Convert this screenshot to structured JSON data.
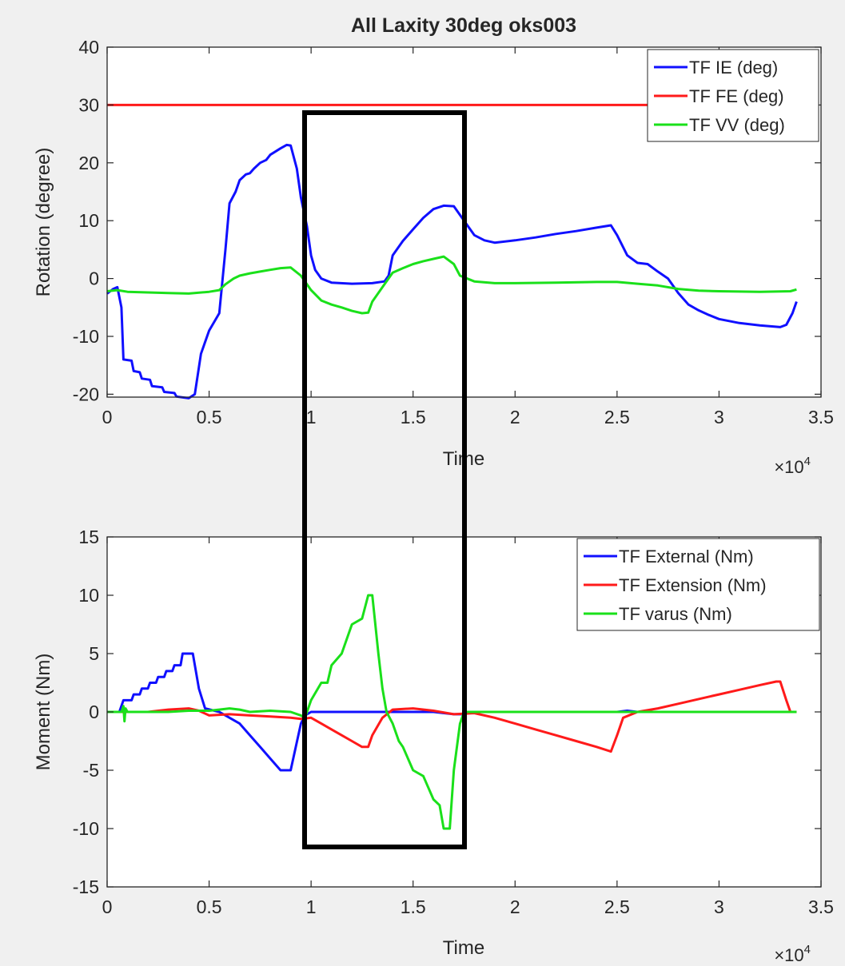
{
  "figure_title": "All Laxity 30deg oks003",
  "highlight_box_color": "#000000",
  "chart_data": [
    {
      "type": "line",
      "title": "All Laxity 30deg oks003",
      "xlabel": "Time",
      "ylabel": "Rotation (degree)",
      "x_exponent_label": "×10",
      "x_exponent_power": "4",
      "xlim": [
        0,
        3.5
      ],
      "ylim": [
        -20.5,
        40
      ],
      "xticks": [
        0,
        0.5,
        1,
        1.5,
        2,
        2.5,
        3,
        3.5
      ],
      "xtick_labels": [
        "0",
        "0.5",
        "1",
        "1.5",
        "2",
        "2.5",
        "3",
        "3.5"
      ],
      "yticks": [
        -20,
        -10,
        0,
        10,
        20,
        30,
        40
      ],
      "ytick_labels": [
        "-20",
        "-10",
        "0",
        "10",
        "20",
        "30",
        "40"
      ],
      "grid": false,
      "legend_position": "top-right",
      "series": [
        {
          "name": "TF IE (deg)",
          "color": "#1010ff",
          "points": [
            [
              0,
              -2.6
            ],
            [
              0.03,
              -1.8
            ],
            [
              0.05,
              -1.5
            ],
            [
              0.07,
              -5
            ],
            [
              0.08,
              -14
            ],
            [
              0.12,
              -14.2
            ],
            [
              0.13,
              -16
            ],
            [
              0.16,
              -16.2
            ],
            [
              0.17,
              -17.3
            ],
            [
              0.21,
              -17.5
            ],
            [
              0.22,
              -18.6
            ],
            [
              0.27,
              -18.8
            ],
            [
              0.28,
              -19.6
            ],
            [
              0.33,
              -19.8
            ],
            [
              0.34,
              -20.4
            ],
            [
              0.4,
              -20.7
            ],
            [
              0.43,
              -20
            ],
            [
              0.46,
              -13
            ],
            [
              0.5,
              -9
            ],
            [
              0.55,
              -6
            ],
            [
              0.58,
              5
            ],
            [
              0.6,
              13
            ],
            [
              0.63,
              15
            ],
            [
              0.65,
              17
            ],
            [
              0.68,
              18
            ],
            [
              0.7,
              18.2
            ],
            [
              0.72,
              19
            ],
            [
              0.75,
              20
            ],
            [
              0.78,
              20.5
            ],
            [
              0.8,
              21.4
            ],
            [
              0.85,
              22.5
            ],
            [
              0.88,
              23.1
            ],
            [
              0.9,
              23
            ],
            [
              0.93,
              19
            ],
            [
              0.95,
              14
            ],
            [
              0.98,
              9
            ],
            [
              1.0,
              4
            ],
            [
              1.02,
              1.5
            ],
            [
              1.05,
              0
            ],
            [
              1.1,
              -0.7
            ],
            [
              1.2,
              -0.9
            ],
            [
              1.3,
              -0.8
            ],
            [
              1.36,
              -0.5
            ],
            [
              1.38,
              0.5
            ],
            [
              1.4,
              4
            ],
            [
              1.45,
              6.5
            ],
            [
              1.5,
              8.5
            ],
            [
              1.55,
              10.5
            ],
            [
              1.6,
              12
            ],
            [
              1.65,
              12.6
            ],
            [
              1.7,
              12.5
            ],
            [
              1.75,
              10
            ],
            [
              1.8,
              7.5
            ],
            [
              1.85,
              6.6
            ],
            [
              1.9,
              6.2
            ],
            [
              2.0,
              6.6
            ],
            [
              2.1,
              7.1
            ],
            [
              2.2,
              7.7
            ],
            [
              2.3,
              8.2
            ],
            [
              2.4,
              8.8
            ],
            [
              2.47,
              9.2
            ],
            [
              2.5,
              7.5
            ],
            [
              2.55,
              4
            ],
            [
              2.6,
              2.7
            ],
            [
              2.65,
              2.5
            ],
            [
              2.7,
              1.2
            ],
            [
              2.75,
              0
            ],
            [
              2.8,
              -2.5
            ],
            [
              2.85,
              -4.5
            ],
            [
              2.9,
              -5.5
            ],
            [
              2.95,
              -6.3
            ],
            [
              3.0,
              -7
            ],
            [
              3.1,
              -7.7
            ],
            [
              3.2,
              -8.1
            ],
            [
              3.3,
              -8.4
            ],
            [
              3.33,
              -8
            ],
            [
              3.36,
              -6
            ],
            [
              3.38,
              -4
            ]
          ]
        },
        {
          "name": "TF FE (deg)",
          "color": "#ff1a1a",
          "points": [
            [
              0,
              30
            ],
            [
              3.38,
              30
            ]
          ]
        },
        {
          "name": "TF VV (deg)",
          "color": "#1ae01a",
          "points": [
            [
              0,
              -2.2
            ],
            [
              0.05,
              -2.0
            ],
            [
              0.1,
              -2.3
            ],
            [
              0.2,
              -2.4
            ],
            [
              0.3,
              -2.5
            ],
            [
              0.4,
              -2.6
            ],
            [
              0.5,
              -2.3
            ],
            [
              0.55,
              -2
            ],
            [
              0.58,
              -1
            ],
            [
              0.62,
              0
            ],
            [
              0.65,
              0.5
            ],
            [
              0.7,
              0.9
            ],
            [
              0.75,
              1.2
            ],
            [
              0.8,
              1.5
            ],
            [
              0.85,
              1.8
            ],
            [
              0.9,
              1.9
            ],
            [
              0.95,
              0.5
            ],
            [
              1.0,
              -2
            ],
            [
              1.05,
              -3.8
            ],
            [
              1.1,
              -4.5
            ],
            [
              1.15,
              -5
            ],
            [
              1.2,
              -5.6
            ],
            [
              1.25,
              -6
            ],
            [
              1.28,
              -5.9
            ],
            [
              1.3,
              -4
            ],
            [
              1.35,
              -1.5
            ],
            [
              1.4,
              1
            ],
            [
              1.45,
              1.8
            ],
            [
              1.5,
              2.5
            ],
            [
              1.55,
              3
            ],
            [
              1.6,
              3.4
            ],
            [
              1.65,
              3.8
            ],
            [
              1.7,
              2.5
            ],
            [
              1.73,
              0.5
            ],
            [
              1.8,
              -0.5
            ],
            [
              1.9,
              -0.8
            ],
            [
              2.0,
              -0.8
            ],
            [
              2.2,
              -0.7
            ],
            [
              2.4,
              -0.6
            ],
            [
              2.5,
              -0.6
            ],
            [
              2.6,
              -0.9
            ],
            [
              2.7,
              -1.2
            ],
            [
              2.8,
              -1.8
            ],
            [
              2.9,
              -2.1
            ],
            [
              3.0,
              -2.2
            ],
            [
              3.2,
              -2.3
            ],
            [
              3.35,
              -2.2
            ],
            [
              3.38,
              -1.9
            ]
          ]
        }
      ]
    },
    {
      "type": "line",
      "title": "",
      "xlabel": "Time",
      "ylabel": "Moment (Nm)",
      "x_exponent_label": "×10",
      "x_exponent_power": "4",
      "xlim": [
        0,
        3.5
      ],
      "ylim": [
        -15,
        15
      ],
      "xticks": [
        0,
        0.5,
        1,
        1.5,
        2,
        2.5,
        3,
        3.5
      ],
      "xtick_labels": [
        "0",
        "0.5",
        "1",
        "1.5",
        "2",
        "2.5",
        "3",
        "3.5"
      ],
      "yticks": [
        -15,
        -10,
        -5,
        0,
        5,
        10,
        15
      ],
      "ytick_labels": [
        "-15",
        "-10",
        "-5",
        "0",
        "5",
        "10",
        "15"
      ],
      "grid": false,
      "legend_position": "top-right",
      "series": [
        {
          "name": "TF External (Nm)",
          "color": "#1010ff",
          "points": [
            [
              0,
              0
            ],
            [
              0.06,
              0
            ],
            [
              0.08,
              1
            ],
            [
              0.12,
              1
            ],
            [
              0.13,
              1.5
            ],
            [
              0.16,
              1.5
            ],
            [
              0.17,
              2
            ],
            [
              0.2,
              2
            ],
            [
              0.21,
              2.5
            ],
            [
              0.24,
              2.5
            ],
            [
              0.25,
              3
            ],
            [
              0.28,
              3
            ],
            [
              0.29,
              3.5
            ],
            [
              0.32,
              3.5
            ],
            [
              0.33,
              4
            ],
            [
              0.36,
              4
            ],
            [
              0.37,
              5
            ],
            [
              0.42,
              5
            ],
            [
              0.45,
              2
            ],
            [
              0.48,
              0.3
            ],
            [
              0.55,
              0
            ],
            [
              0.6,
              -0.5
            ],
            [
              0.65,
              -1
            ],
            [
              0.7,
              -2
            ],
            [
              0.75,
              -3
            ],
            [
              0.8,
              -4
            ],
            [
              0.85,
              -5
            ],
            [
              0.9,
              -5
            ],
            [
              0.95,
              -1
            ],
            [
              0.97,
              -0.3
            ],
            [
              1.0,
              0
            ],
            [
              1.2,
              0
            ],
            [
              1.4,
              0
            ],
            [
              1.6,
              0
            ],
            [
              1.7,
              -0.2
            ],
            [
              1.75,
              -0.2
            ],
            [
              1.8,
              0
            ],
            [
              2.5,
              0
            ],
            [
              2.55,
              0.1
            ],
            [
              2.6,
              0
            ],
            [
              3.38,
              0
            ]
          ]
        },
        {
          "name": "TF Extension (Nm)",
          "color": "#ff1a1a",
          "points": [
            [
              0,
              0
            ],
            [
              0.2,
              0
            ],
            [
              0.3,
              0.2
            ],
            [
              0.4,
              0.3
            ],
            [
              0.45,
              0.1
            ],
            [
              0.5,
              -0.3
            ],
            [
              0.6,
              -0.2
            ],
            [
              0.7,
              -0.3
            ],
            [
              0.8,
              -0.4
            ],
            [
              0.9,
              -0.5
            ],
            [
              0.95,
              -0.6
            ],
            [
              1.0,
              -0.5
            ],
            [
              1.05,
              -1
            ],
            [
              1.1,
              -1.5
            ],
            [
              1.15,
              -2
            ],
            [
              1.2,
              -2.5
            ],
            [
              1.25,
              -3
            ],
            [
              1.28,
              -3
            ],
            [
              1.3,
              -2
            ],
            [
              1.35,
              -0.5
            ],
            [
              1.4,
              0.2
            ],
            [
              1.5,
              0.3
            ],
            [
              1.6,
              0.1
            ],
            [
              1.7,
              -0.2
            ],
            [
              1.8,
              -0.1
            ],
            [
              1.9,
              -0.5
            ],
            [
              2.0,
              -1
            ],
            [
              2.1,
              -1.5
            ],
            [
              2.2,
              -2
            ],
            [
              2.3,
              -2.5
            ],
            [
              2.4,
              -3
            ],
            [
              2.47,
              -3.4
            ],
            [
              2.5,
              -2
            ],
            [
              2.53,
              -0.5
            ],
            [
              2.6,
              0
            ],
            [
              2.7,
              0.3
            ],
            [
              2.8,
              0.7
            ],
            [
              2.9,
              1.1
            ],
            [
              3.0,
              1.5
            ],
            [
              3.1,
              1.9
            ],
            [
              3.2,
              2.3
            ],
            [
              3.28,
              2.6
            ],
            [
              3.3,
              2.6
            ],
            [
              3.33,
              1
            ],
            [
              3.35,
              0
            ],
            [
              3.38,
              0
            ]
          ]
        },
        {
          "name": "TF varus (Nm)",
          "color": "#1ae01a",
          "points": [
            [
              0,
              0
            ],
            [
              0.07,
              0
            ],
            [
              0.08,
              0.5
            ],
            [
              0.085,
              -0.8
            ],
            [
              0.09,
              0.3
            ],
            [
              0.1,
              0
            ],
            [
              0.3,
              0
            ],
            [
              0.4,
              0.1
            ],
            [
              0.5,
              0.1
            ],
            [
              0.55,
              0.2
            ],
            [
              0.6,
              0.3
            ],
            [
              0.65,
              0.2
            ],
            [
              0.7,
              0
            ],
            [
              0.8,
              0.1
            ],
            [
              0.9,
              0
            ],
            [
              0.95,
              -0.3
            ],
            [
              0.97,
              -0.5
            ],
            [
              1.0,
              1
            ],
            [
              1.05,
              2.5
            ],
            [
              1.08,
              2.5
            ],
            [
              1.1,
              4
            ],
            [
              1.15,
              5
            ],
            [
              1.2,
              7.5
            ],
            [
              1.25,
              8
            ],
            [
              1.28,
              10
            ],
            [
              1.3,
              10
            ],
            [
              1.33,
              5
            ],
            [
              1.35,
              2
            ],
            [
              1.37,
              0
            ],
            [
              1.4,
              -1
            ],
            [
              1.43,
              -2.5
            ],
            [
              1.45,
              -3
            ],
            [
              1.5,
              -5
            ],
            [
              1.55,
              -5.5
            ],
            [
              1.6,
              -7.5
            ],
            [
              1.63,
              -8
            ],
            [
              1.65,
              -10
            ],
            [
              1.68,
              -10
            ],
            [
              1.7,
              -5
            ],
            [
              1.73,
              -1
            ],
            [
              1.75,
              0
            ],
            [
              2.0,
              0
            ],
            [
              2.5,
              0
            ],
            [
              3.0,
              0
            ],
            [
              3.38,
              0
            ]
          ]
        }
      ]
    }
  ]
}
